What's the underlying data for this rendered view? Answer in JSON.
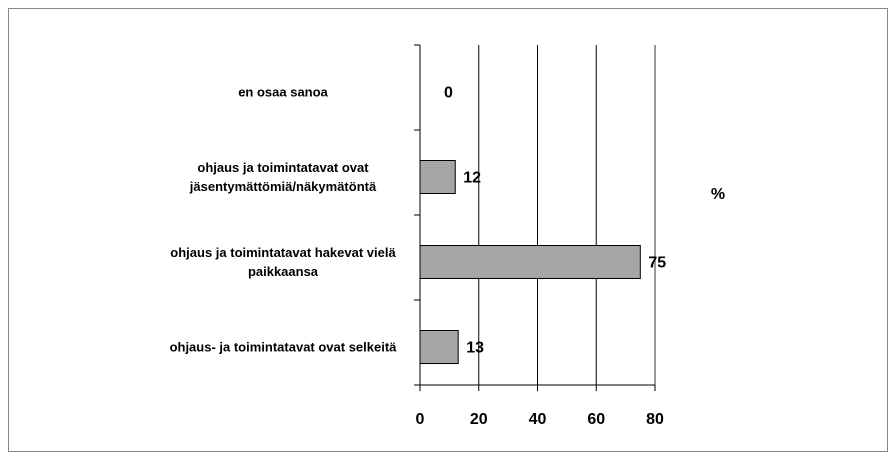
{
  "chart_data": {
    "type": "bar",
    "orientation": "horizontal",
    "categories": [
      "en osaa sanoa",
      "ohjaus ja toimintatavat ovat jäsentymättömiä/näkymätöntä",
      "ohjaus ja toimintatavat hakevat vielä paikkaansa",
      "ohjaus- ja toimintatavat ovat selkeitä"
    ],
    "values": [
      0,
      12,
      75,
      13
    ],
    "color": "#a6a6a6",
    "xlabel": "%",
    "xlim": [
      0,
      80
    ],
    "xticks": [
      0,
      20,
      40,
      60,
      80
    ],
    "grid": true
  }
}
